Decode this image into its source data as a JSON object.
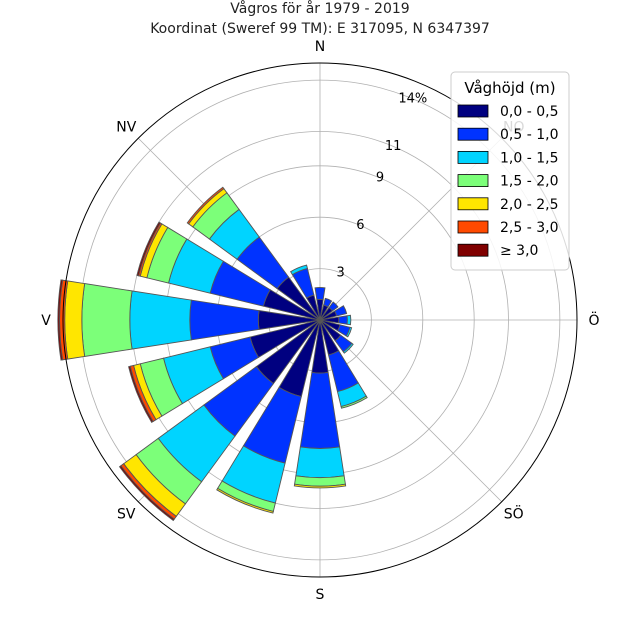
{
  "chart_data": {
    "type": "windrose",
    "title": "Vågros för år 1979 - 2019",
    "subtitle": "Koordinat (Sweref 99 TM): E 317095, N 6347397",
    "unit_label": "14%",
    "radial_ticks": [
      "3",
      "6",
      "9",
      "11",
      "14%"
    ],
    "radial_values": [
      3,
      6,
      9,
      11,
      14
    ],
    "rmax": 15.0,
    "directions": [
      "N",
      "NO",
      "Ö",
      "SÖ",
      "S",
      "SV",
      "V",
      "NV"
    ],
    "direction_angles": [
      0,
      45,
      90,
      135,
      180,
      225,
      270,
      315
    ],
    "legend_title": "Våghöjd (m)",
    "bins": [
      "0,0 - 0,5",
      "0,5 - 1,0",
      "1,0 - 1,5",
      "1,5 - 2,0",
      "2,0 - 2,5",
      "2,5 - 3,0",
      "≥ 3,0"
    ],
    "colors": [
      "#000080",
      "#0033ff",
      "#00d4ff",
      "#7cff79",
      "#ffe600",
      "#ff4a00",
      "#800000"
    ],
    "sectors_deg": [
      0,
      22.5,
      45,
      67.5,
      90,
      112.5,
      135,
      157.5,
      180,
      202.5,
      225,
      247.5,
      270,
      292.5,
      315,
      337.5
    ],
    "cumulative_percent": [
      [
        1.2,
        1.9,
        1.9,
        1.9,
        1.9,
        1.9,
        1.9
      ],
      [
        0.9,
        1.3,
        1.3,
        1.3,
        1.3,
        1.3,
        1.3
      ],
      [
        0.9,
        1.3,
        1.3,
        1.3,
        1.3,
        1.3,
        1.3
      ],
      [
        1.0,
        1.6,
        1.6,
        1.6,
        1.6,
        1.6,
        1.6
      ],
      [
        1.1,
        1.6,
        1.8,
        1.8,
        1.8,
        1.8,
        1.8
      ],
      [
        1.2,
        1.8,
        1.9,
        1.9,
        1.9,
        1.9,
        1.9
      ],
      [
        1.5,
        2.3,
        2.4,
        2.4,
        2.4,
        2.4,
        2.4
      ],
      [
        2.1,
        4.3,
        5.2,
        5.3,
        5.3,
        5.3,
        5.3
      ],
      [
        3.1,
        7.5,
        9.2,
        9.7,
        9.8,
        9.8,
        9.8
      ],
      [
        4.6,
        8.6,
        11.0,
        11.5,
        11.6,
        11.6,
        11.6
      ],
      [
        4.6,
        8.4,
        11.7,
        13.3,
        14.2,
        14.4,
        14.5
      ],
      [
        4.2,
        6.6,
        9.4,
        10.8,
        11.2,
        11.4,
        11.5
      ],
      [
        3.6,
        7.6,
        11.1,
        13.9,
        14.9,
        15.2,
        15.3
      ],
      [
        3.4,
        6.6,
        9.1,
        10.4,
        10.8,
        10.9,
        11.0
      ],
      [
        3.1,
        6.0,
        8.0,
        9.2,
        9.5,
        9.6,
        9.6
      ],
      [
        1.5,
        3.1,
        3.3,
        3.3,
        3.3,
        3.3,
        3.3
      ]
    ]
  }
}
